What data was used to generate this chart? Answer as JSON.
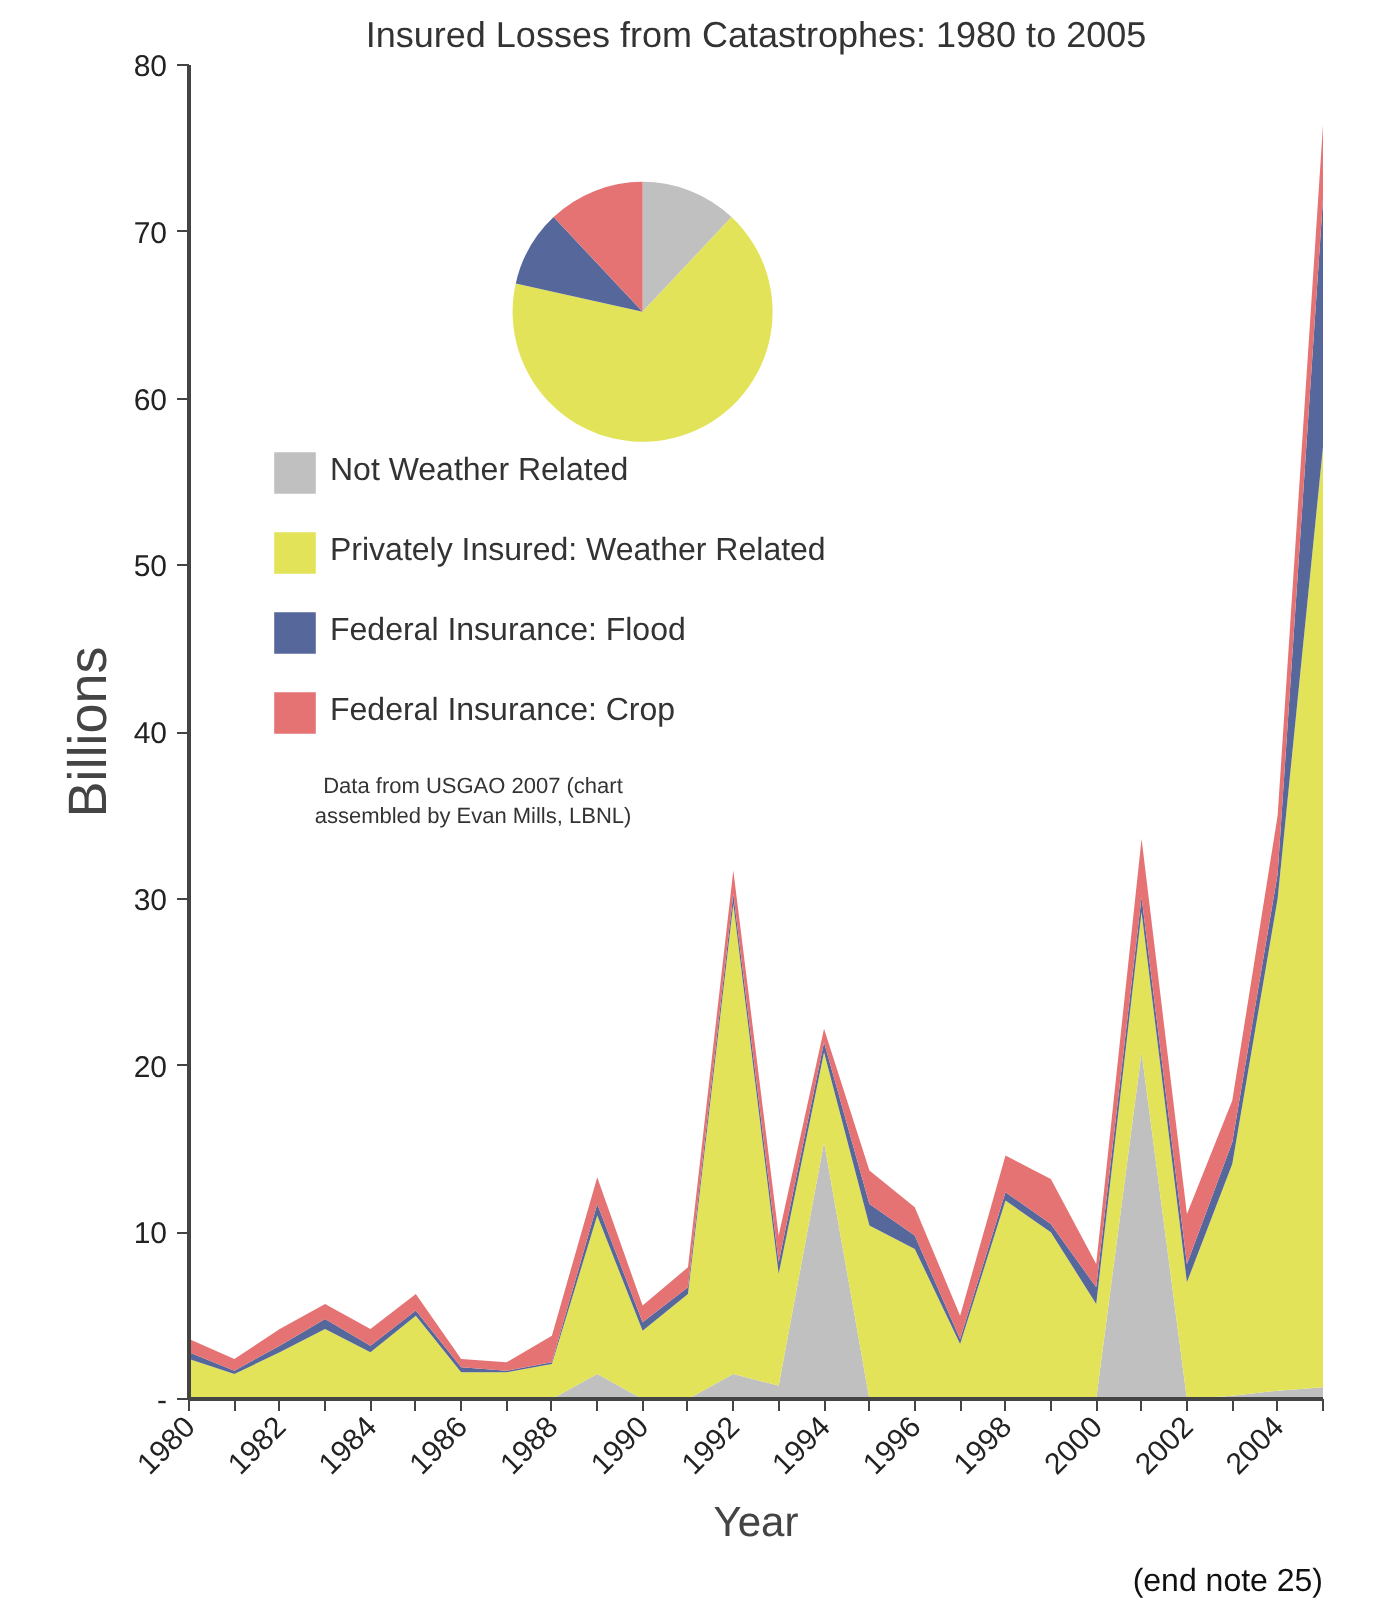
{
  "chart_data": [
    {
      "type": "area",
      "stacked": true,
      "title": "Insured Losses from Catastrophes: 1980 to 2005",
      "xlabel": "Year",
      "ylabel": "Billions",
      "x": [
        1980,
        1981,
        1982,
        1983,
        1984,
        1985,
        1986,
        1987,
        1988,
        1989,
        1990,
        1991,
        1992,
        1993,
        1994,
        1995,
        1996,
        1997,
        1998,
        1999,
        2000,
        2001,
        2002,
        2003,
        2004,
        2005
      ],
      "series": [
        {
          "name": "Not Weather Related",
          "color": "#c0c0c0",
          "values": [
            0,
            0,
            0,
            0,
            0,
            0,
            0,
            0,
            0,
            1.5,
            0,
            0,
            1.5,
            0.8,
            15.4,
            0,
            0,
            0,
            0,
            0,
            0,
            20.8,
            0,
            0.2,
            0.5,
            0.7
          ]
        },
        {
          "name": "Privately Insured: Weather Related",
          "color": "#e3e35a",
          "values": [
            2.4,
            1.5,
            2.8,
            4.2,
            2.8,
            5.0,
            1.6,
            1.6,
            2.1,
            9.5,
            4.1,
            6.3,
            28.2,
            6.7,
            5.4,
            10.4,
            9.0,
            3.3,
            11.9,
            10.0,
            5.7,
            8.4,
            7.0,
            13.9,
            29.5,
            56.4
          ]
        },
        {
          "name": "Federal Insurance: Flood",
          "color": "#56679c",
          "values": [
            0.4,
            0.2,
            0.4,
            0.6,
            0.4,
            0.3,
            0.3,
            0.1,
            0.1,
            0.7,
            0.5,
            0.4,
            0.6,
            0.7,
            0.6,
            1.3,
            0.8,
            0.3,
            0.5,
            0.5,
            1.0,
            0.9,
            1.1,
            1.3,
            1.5,
            14.9
          ]
        },
        {
          "name": "Federal Insurance: Crop",
          "color": "#e57373",
          "values": [
            0.8,
            0.7,
            1.0,
            0.9,
            1.0,
            1.0,
            0.5,
            0.5,
            1.6,
            1.6,
            1.0,
            1.2,
            1.4,
            1.6,
            0.8,
            2.0,
            1.7,
            1.4,
            2.2,
            2.7,
            1.4,
            3.5,
            3.0,
            2.5,
            3.5,
            4.4
          ]
        }
      ],
      "xlim": [
        1980,
        2005
      ],
      "xticks": [
        1980,
        1982,
        1984,
        1986,
        1988,
        1990,
        1992,
        1994,
        1996,
        1998,
        2000,
        2002,
        2004
      ],
      "ylim": [
        0,
        80
      ],
      "yticks": [
        {
          "value": 0,
          "label": "-"
        },
        10,
        20,
        30,
        40,
        50,
        60,
        70,
        80
      ],
      "grid": false,
      "legend": "top left",
      "annotations": [
        "Data from USGAO 2007 (chart assembled by Evan Mills, LBNL)",
        "(end note 25)"
      ]
    },
    {
      "type": "pie",
      "categories": [
        null,
        null,
        null,
        null
      ],
      "values": [
        12,
        66.5,
        9.5,
        12
      ],
      "colors": [
        "#c0c0c0",
        "#e3e35a",
        "#56679c",
        "#e57373"
      ]
    }
  ]
}
